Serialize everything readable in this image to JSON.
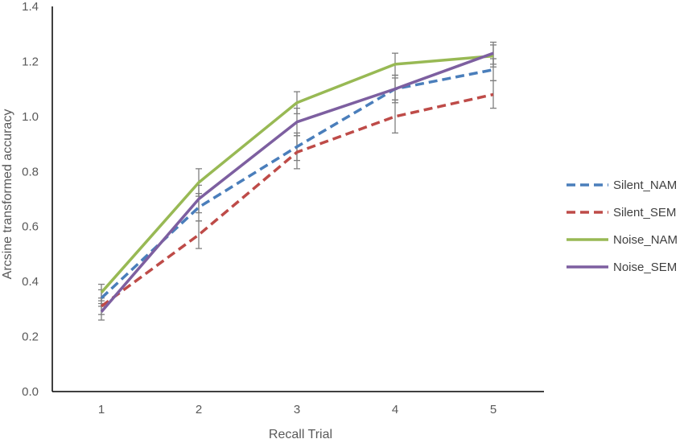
{
  "chart_data": {
    "type": "line",
    "title": "",
    "xlabel": "Recall Trial",
    "ylabel": "Arcsine transformed accuracy",
    "categories": [
      "1",
      "2",
      "3",
      "4",
      "5"
    ],
    "ylim": [
      0,
      1.4
    ],
    "yticks": [
      "0.0",
      "0.2",
      "0.4",
      "0.6",
      "0.8",
      "1.0",
      "1.2",
      "1.4"
    ],
    "grid": false,
    "legend_position": "right",
    "series": [
      {
        "name": "Silent_NAM",
        "color": "#4a7ebb",
        "dash": true,
        "values": [
          0.34,
          0.67,
          0.89,
          1.1,
          1.17
        ],
        "errors": [
          0.03,
          0.05,
          0.05,
          0.04,
          0.04
        ]
      },
      {
        "name": "Silent_SEM",
        "color": "#be4b48",
        "dash": true,
        "values": [
          0.31,
          0.57,
          0.87,
          1.0,
          1.08
        ],
        "errors": [
          0.03,
          0.05,
          0.06,
          0.06,
          0.05
        ]
      },
      {
        "name": "Noise_NAM",
        "color": "#98b954",
        "dash": false,
        "values": [
          0.36,
          0.76,
          1.05,
          1.19,
          1.22
        ],
        "errors": [
          0.03,
          0.05,
          0.04,
          0.04,
          0.04
        ]
      },
      {
        "name": "Noise_SEM",
        "color": "#7d5fa0",
        "dash": false,
        "values": [
          0.29,
          0.7,
          0.98,
          1.1,
          1.23
        ],
        "errors": [
          0.03,
          0.05,
          0.05,
          0.05,
          0.04
        ]
      }
    ]
  }
}
